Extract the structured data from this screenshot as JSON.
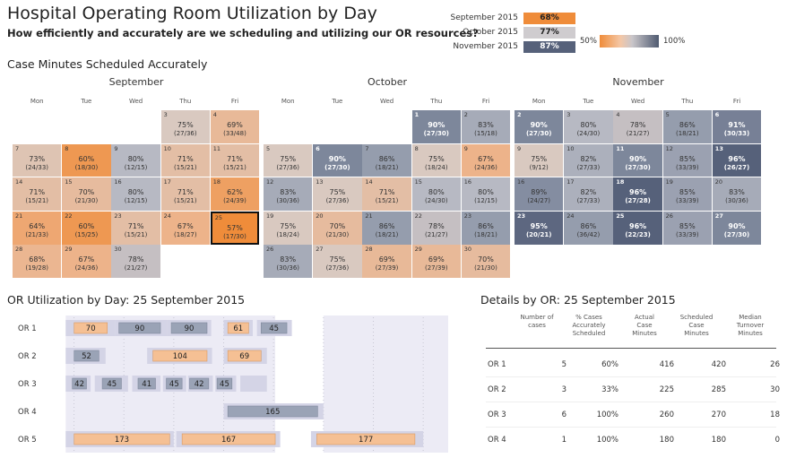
{
  "title": "Hospital Operating Room Utilization by Day",
  "subtitle": "How efficiently and accurately are we scheduling and utilizing our OR resources?",
  "legend": {
    "months": [
      {
        "label": "September 2015",
        "value": "68%",
        "bg": "#ef8c3a",
        "fg": "#222222"
      },
      {
        "label": "October 2015",
        "value": "77%",
        "bg": "#cfcccf",
        "fg": "#222222"
      },
      {
        "label": "November 2015",
        "value": "87%",
        "bg": "#56617a",
        "fg": "#ffffff"
      }
    ],
    "scale_min": "50%",
    "scale_max": "100%"
  },
  "calendar_title": "Case Minutes Scheduled Accurately",
  "calendars": [
    {
      "month": "September",
      "weekdays": [
        "Mon",
        "Tue",
        "Wed",
        "Thu",
        "Fri"
      ],
      "days": [
        {
          "day": "3",
          "pct": "75%",
          "frac": "(27/36)",
          "row": 0,
          "col": 3,
          "v": 75
        },
        {
          "day": "4",
          "pct": "69%",
          "frac": "(33/48)",
          "row": 0,
          "col": 4,
          "v": 69
        },
        {
          "day": "7",
          "pct": "73%",
          "frac": "(24/33)",
          "row": 1,
          "col": 0,
          "v": 73
        },
        {
          "day": "8",
          "pct": "60%",
          "frac": "(18/30)",
          "row": 1,
          "col": 1,
          "v": 60
        },
        {
          "day": "9",
          "pct": "80%",
          "frac": "(12/15)",
          "row": 1,
          "col": 2,
          "v": 80
        },
        {
          "day": "10",
          "pct": "71%",
          "frac": "(15/21)",
          "row": 1,
          "col": 3,
          "v": 71
        },
        {
          "day": "11",
          "pct": "71%",
          "frac": "(15/21)",
          "row": 1,
          "col": 4,
          "v": 71
        },
        {
          "day": "14",
          "pct": "71%",
          "frac": "(15/21)",
          "row": 2,
          "col": 0,
          "v": 71
        },
        {
          "day": "15",
          "pct": "70%",
          "frac": "(21/30)",
          "row": 2,
          "col": 1,
          "v": 70
        },
        {
          "day": "16",
          "pct": "80%",
          "frac": "(12/15)",
          "row": 2,
          "col": 2,
          "v": 80
        },
        {
          "day": "17",
          "pct": "71%",
          "frac": "(15/21)",
          "row": 2,
          "col": 3,
          "v": 71
        },
        {
          "day": "18",
          "pct": "62%",
          "frac": "(24/39)",
          "row": 2,
          "col": 4,
          "v": 62
        },
        {
          "day": "21",
          "pct": "64%",
          "frac": "(21/33)",
          "row": 3,
          "col": 0,
          "v": 64
        },
        {
          "day": "22",
          "pct": "60%",
          "frac": "(15/25)",
          "row": 3,
          "col": 1,
          "v": 60
        },
        {
          "day": "23",
          "pct": "71%",
          "frac": "(15/21)",
          "row": 3,
          "col": 2,
          "v": 71
        },
        {
          "day": "24",
          "pct": "67%",
          "frac": "(18/27)",
          "row": 3,
          "col": 3,
          "v": 67
        },
        {
          "day": "25",
          "pct": "57%",
          "frac": "(17/30)",
          "row": 3,
          "col": 4,
          "v": 57,
          "selected": true
        },
        {
          "day": "28",
          "pct": "68%",
          "frac": "(19/28)",
          "row": 4,
          "col": 0,
          "v": 68
        },
        {
          "day": "29",
          "pct": "67%",
          "frac": "(24/36)",
          "row": 4,
          "col": 1,
          "v": 67
        },
        {
          "day": "30",
          "pct": "78%",
          "frac": "(21/27)",
          "row": 4,
          "col": 2,
          "v": 78
        }
      ]
    },
    {
      "month": "October",
      "weekdays": [
        "Mon",
        "Tue",
        "Wed",
        "Thu",
        "Fri"
      ],
      "days": [
        {
          "day": "1",
          "pct": "90%",
          "frac": "(27/30)",
          "row": 0,
          "col": 3,
          "v": 90
        },
        {
          "day": "2",
          "pct": "83%",
          "frac": "(15/18)",
          "row": 0,
          "col": 4,
          "v": 83
        },
        {
          "day": "5",
          "pct": "75%",
          "frac": "(27/36)",
          "row": 1,
          "col": 0,
          "v": 75
        },
        {
          "day": "6",
          "pct": "90%",
          "frac": "(27/30)",
          "row": 1,
          "col": 1,
          "v": 90
        },
        {
          "day": "7",
          "pct": "86%",
          "frac": "(18/21)",
          "row": 1,
          "col": 2,
          "v": 86
        },
        {
          "day": "8",
          "pct": "75%",
          "frac": "(18/24)",
          "row": 1,
          "col": 3,
          "v": 75
        },
        {
          "day": "9",
          "pct": "67%",
          "frac": "(24/36)",
          "row": 1,
          "col": 4,
          "v": 67
        },
        {
          "day": "12",
          "pct": "83%",
          "frac": "(30/36)",
          "row": 2,
          "col": 0,
          "v": 83
        },
        {
          "day": "13",
          "pct": "75%",
          "frac": "(27/36)",
          "row": 2,
          "col": 1,
          "v": 75
        },
        {
          "day": "14",
          "pct": "71%",
          "frac": "(15/21)",
          "row": 2,
          "col": 2,
          "v": 71
        },
        {
          "day": "15",
          "pct": "80%",
          "frac": "(24/30)",
          "row": 2,
          "col": 3,
          "v": 80
        },
        {
          "day": "16",
          "pct": "80%",
          "frac": "(12/15)",
          "row": 2,
          "col": 4,
          "v": 80
        },
        {
          "day": "19",
          "pct": "75%",
          "frac": "(18/24)",
          "row": 3,
          "col": 0,
          "v": 75
        },
        {
          "day": "20",
          "pct": "70%",
          "frac": "(21/30)",
          "row": 3,
          "col": 1,
          "v": 70
        },
        {
          "day": "21",
          "pct": "86%",
          "frac": "(18/21)",
          "row": 3,
          "col": 2,
          "v": 86
        },
        {
          "day": "22",
          "pct": "78%",
          "frac": "(21/27)",
          "row": 3,
          "col": 3,
          "v": 78
        },
        {
          "day": "23",
          "pct": "86%",
          "frac": "(18/21)",
          "row": 3,
          "col": 4,
          "v": 86
        },
        {
          "day": "26",
          "pct": "83%",
          "frac": "(30/36)",
          "row": 4,
          "col": 0,
          "v": 83
        },
        {
          "day": "27",
          "pct": "75%",
          "frac": "(27/36)",
          "row": 4,
          "col": 1,
          "v": 75
        },
        {
          "day": "28",
          "pct": "69%",
          "frac": "(27/39)",
          "row": 4,
          "col": 2,
          "v": 69
        },
        {
          "day": "29",
          "pct": "69%",
          "frac": "(27/39)",
          "row": 4,
          "col": 3,
          "v": 69
        },
        {
          "day": "30",
          "pct": "70%",
          "frac": "(21/30)",
          "row": 4,
          "col": 4,
          "v": 70
        }
      ]
    },
    {
      "month": "November",
      "weekdays": [
        "Mon",
        "Tue",
        "Wed",
        "Thu",
        "Fri"
      ],
      "days": [
        {
          "day": "2",
          "pct": "90%",
          "frac": "(27/30)",
          "row": 0,
          "col": 0,
          "v": 90
        },
        {
          "day": "3",
          "pct": "80%",
          "frac": "(24/30)",
          "row": 0,
          "col": 1,
          "v": 80
        },
        {
          "day": "4",
          "pct": "78%",
          "frac": "(21/27)",
          "row": 0,
          "col": 2,
          "v": 78
        },
        {
          "day": "5",
          "pct": "86%",
          "frac": "(18/21)",
          "row": 0,
          "col": 3,
          "v": 86
        },
        {
          "day": "6",
          "pct": "91%",
          "frac": "(30/33)",
          "row": 0,
          "col": 4,
          "v": 91
        },
        {
          "day": "9",
          "pct": "75%",
          "frac": "(9/12)",
          "row": 1,
          "col": 0,
          "v": 75
        },
        {
          "day": "10",
          "pct": "82%",
          "frac": "(27/33)",
          "row": 1,
          "col": 1,
          "v": 82
        },
        {
          "day": "11",
          "pct": "90%",
          "frac": "(27/30)",
          "row": 1,
          "col": 2,
          "v": 90
        },
        {
          "day": "12",
          "pct": "85%",
          "frac": "(33/39)",
          "row": 1,
          "col": 3,
          "v": 85
        },
        {
          "day": "13",
          "pct": "96%",
          "frac": "(26/27)",
          "row": 1,
          "col": 4,
          "v": 96
        },
        {
          "day": "16",
          "pct": "89%",
          "frac": "(24/27)",
          "row": 2,
          "col": 0,
          "v": 89
        },
        {
          "day": "17",
          "pct": "82%",
          "frac": "(27/33)",
          "row": 2,
          "col": 1,
          "v": 82
        },
        {
          "day": "18",
          "pct": "96%",
          "frac": "(27/28)",
          "row": 2,
          "col": 2,
          "v": 96
        },
        {
          "day": "19",
          "pct": "85%",
          "frac": "(33/39)",
          "row": 2,
          "col": 3,
          "v": 85
        },
        {
          "day": "20",
          "pct": "83%",
          "frac": "(30/36)",
          "row": 2,
          "col": 4,
          "v": 83
        },
        {
          "day": "23",
          "pct": "95%",
          "frac": "(20/21)",
          "row": 3,
          "col": 0,
          "v": 95
        },
        {
          "day": "24",
          "pct": "86%",
          "frac": "(36/42)",
          "row": 3,
          "col": 1,
          "v": 86
        },
        {
          "day": "25",
          "pct": "96%",
          "frac": "(22/23)",
          "row": 3,
          "col": 2,
          "v": 96
        },
        {
          "day": "26",
          "pct": "85%",
          "frac": "(33/39)",
          "row": 3,
          "col": 3,
          "v": 85
        },
        {
          "day": "27",
          "pct": "90%",
          "frac": "(27/30)",
          "row": 3,
          "col": 4,
          "v": 90
        }
      ]
    }
  ],
  "gantt_title": "OR Utilization by Day: 25 September 2015",
  "chart_data": {
    "type": "bar",
    "rows": [
      "OR 1",
      "OR 2",
      "OR 3",
      "OR 4",
      "OR 5"
    ],
    "cases": [
      {
        "row": 0,
        "label": "70",
        "start": 0.2,
        "end": 40,
        "fill": "orange"
      },
      {
        "row": 0,
        "label": "90",
        "start": 54,
        "end": 104,
        "fill": "grey"
      },
      {
        "row": 0,
        "label": "90",
        "start": 117,
        "end": 160,
        "fill": "grey"
      },
      {
        "row": 0,
        "label": "61",
        "start": 185,
        "end": 210,
        "fill": "orange"
      },
      {
        "row": 0,
        "label": "45",
        "start": 225,
        "end": 256,
        "fill": "grey"
      },
      {
        "row": 1,
        "label": "52",
        "start": 0.2,
        "end": 30,
        "fill": "grey"
      },
      {
        "row": 1,
        "label": "104",
        "start": 95,
        "end": 160,
        "fill": "orange"
      },
      {
        "row": 1,
        "label": "69",
        "start": 185,
        "end": 225,
        "fill": "orange"
      },
      {
        "row": 2,
        "label": "42",
        "start": -2,
        "end": 15,
        "fill": "grey"
      },
      {
        "row": 2,
        "label": "45",
        "start": 34,
        "end": 57,
        "fill": "grey"
      },
      {
        "row": 2,
        "label": "41",
        "start": 77,
        "end": 98,
        "fill": "grey"
      },
      {
        "row": 2,
        "label": "45",
        "start": 111,
        "end": 130,
        "fill": "grey"
      },
      {
        "row": 2,
        "label": "42",
        "start": 139,
        "end": 162,
        "fill": "grey"
      },
      {
        "row": 2,
        "label": "45",
        "start": 172,
        "end": 190,
        "fill": "grey"
      },
      {
        "row": 3,
        "label": "165",
        "start": 185,
        "end": 293,
        "fill": "grey"
      },
      {
        "row": 4,
        "label": "173",
        "start": 0.2,
        "end": 115,
        "fill": "orange"
      },
      {
        "row": 4,
        "label": "167",
        "start": 130,
        "end": 242,
        "fill": "orange"
      },
      {
        "row": 4,
        "label": "177",
        "start": 292,
        "end": 410,
        "fill": "orange"
      }
    ],
    "scheduled": [
      {
        "row": 0,
        "start": -10,
        "end": 50
      },
      {
        "row": 0,
        "start": 50,
        "end": 112
      },
      {
        "row": 0,
        "start": 112,
        "end": 165
      },
      {
        "row": 0,
        "start": 180,
        "end": 215
      },
      {
        "row": 0,
        "start": 220,
        "end": 262
      },
      {
        "row": 1,
        "start": -10,
        "end": 38
      },
      {
        "row": 1,
        "start": 88,
        "end": 166
      },
      {
        "row": 1,
        "start": 180,
        "end": 232
      },
      {
        "row": 2,
        "start": -10,
        "end": 20
      },
      {
        "row": 2,
        "start": 25,
        "end": 65
      },
      {
        "row": 2,
        "start": 70,
        "end": 104
      },
      {
        "row": 2,
        "start": 107,
        "end": 135
      },
      {
        "row": 2,
        "start": 137,
        "end": 167
      },
      {
        "row": 2,
        "start": 170,
        "end": 195
      },
      {
        "row": 2,
        "start": 200,
        "end": 232
      },
      {
        "row": 3,
        "start": 180,
        "end": 300
      },
      {
        "row": 4,
        "start": -10,
        "end": 120
      },
      {
        "row": 4,
        "start": 123,
        "end": 248
      },
      {
        "row": 4,
        "start": 285,
        "end": 420
      }
    ],
    "xlim": [
      -20,
      450
    ]
  },
  "details_title": "Details by OR: 25 September 2015",
  "details": {
    "headers": [
      {
        "l1": "Number of",
        "l2": "cases",
        "l3": ""
      },
      {
        "l1": "% Cases",
        "l2": "Accurately",
        "l3": "Scheduled"
      },
      {
        "l1": "Actual",
        "l2": "Case",
        "l3": "Minutes"
      },
      {
        "l1": "Scheduled",
        "l2": "Case",
        "l3": "Minutes"
      },
      {
        "l1": "Median",
        "l2": "Turnover",
        "l3": "Minutes"
      }
    ],
    "rows": [
      {
        "or": "OR 1",
        "cases": "5",
        "pct": "60%",
        "actual": "416",
        "sched": "420",
        "turnover": "26"
      },
      {
        "or": "OR 2",
        "cases": "3",
        "pct": "33%",
        "actual": "225",
        "sched": "285",
        "turnover": "30"
      },
      {
        "or": "OR 3",
        "cases": "6",
        "pct": "100%",
        "actual": "260",
        "sched": "270",
        "turnover": "18"
      },
      {
        "or": "OR 4",
        "cases": "1",
        "pct": "100%",
        "actual": "180",
        "sched": "180",
        "turnover": "0"
      }
    ]
  },
  "colors": {
    "orange": "#f5c094",
    "grey": "#9aa3b6",
    "scheduled": "#d4d4e6",
    "band": "#ecebf5"
  }
}
